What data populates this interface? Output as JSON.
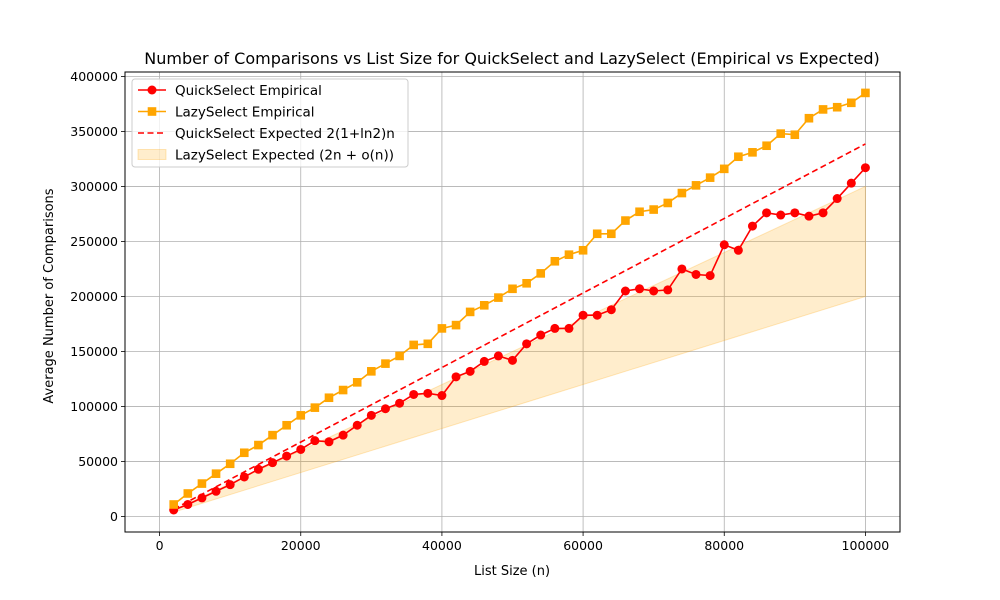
{
  "chart_data": {
    "type": "line",
    "title": "Number of Comparisons vs List Size for QuickSelect and LazySelect (Empirical vs Expected)",
    "xlabel": "List Size (n)",
    "ylabel": "Average Number of Comparisons",
    "xlim": [
      -4900,
      104900
    ],
    "ylim": [
      -14000,
      404000
    ],
    "xticks": [
      0,
      20000,
      40000,
      60000,
      80000,
      100000
    ],
    "xtick_labels": [
      "0",
      "20000",
      "40000",
      "60000",
      "80000",
      "100000"
    ],
    "yticks": [
      0,
      50000,
      100000,
      150000,
      200000,
      250000,
      300000,
      350000,
      400000
    ],
    "ytick_labels": [
      "0",
      "50000",
      "100000",
      "150000",
      "200000",
      "250000",
      "300000",
      "350000",
      "400000"
    ],
    "grid": true,
    "legend_position": "top-left",
    "x": [
      2000,
      4000,
      6000,
      8000,
      10000,
      12000,
      14000,
      16000,
      18000,
      20000,
      22000,
      24000,
      26000,
      28000,
      30000,
      32000,
      34000,
      36000,
      38000,
      40000,
      42000,
      44000,
      46000,
      48000,
      50000,
      52000,
      54000,
      56000,
      58000,
      60000,
      62000,
      64000,
      66000,
      68000,
      70000,
      72000,
      74000,
      76000,
      78000,
      80000,
      82000,
      84000,
      86000,
      88000,
      90000,
      92000,
      94000,
      96000,
      98000,
      100000
    ],
    "series": [
      {
        "name": "QuickSelect Empirical",
        "kind": "line-marker",
        "marker": "circle",
        "color": "#ff0000",
        "values": [
          6000,
          11000,
          17000,
          23000,
          29000,
          36000,
          43000,
          49000,
          55000,
          61000,
          69000,
          68000,
          74000,
          83000,
          92000,
          98000,
          103000,
          111000,
          112000,
          110000,
          127000,
          132000,
          141000,
          146000,
          142000,
          157000,
          165000,
          171000,
          171000,
          183000,
          183000,
          188000,
          205000,
          207000,
          205000,
          206000,
          225000,
          220000,
          219000,
          247000,
          242000,
          264000,
          276000,
          274000,
          276000,
          273000,
          276000,
          289000,
          303000,
          317000
        ]
      },
      {
        "name": "LazySelect Empirical",
        "kind": "line-marker",
        "marker": "square",
        "color": "#ffa500",
        "values": [
          11000,
          21000,
          30000,
          39000,
          48000,
          58000,
          65000,
          74000,
          83000,
          92000,
          99000,
          108000,
          115000,
          122000,
          132000,
          139000,
          146000,
          156000,
          157000,
          171000,
          174000,
          186000,
          192000,
          199000,
          207000,
          212000,
          221000,
          232000,
          238000,
          242000,
          257000,
          257000,
          269000,
          277000,
          279000,
          285000,
          294000,
          301000,
          308000,
          316000,
          327000,
          331000,
          337000,
          348000,
          347000,
          362000,
          370000,
          372000,
          376000,
          385000
        ]
      },
      {
        "name": "QuickSelect Expected 2(1+ln2)n",
        "kind": "dashed-line",
        "color": "#ff0000",
        "formula": "2(1+ln2)n",
        "x_range": [
          2000,
          100000
        ]
      },
      {
        "name": "LazySelect Expected (2n + o(n))",
        "kind": "band",
        "color": "#ffa500",
        "opacity": 0.2,
        "lower_formula": "2n",
        "upper_formula": "3n",
        "x_range": [
          2000,
          100000
        ]
      }
    ]
  }
}
